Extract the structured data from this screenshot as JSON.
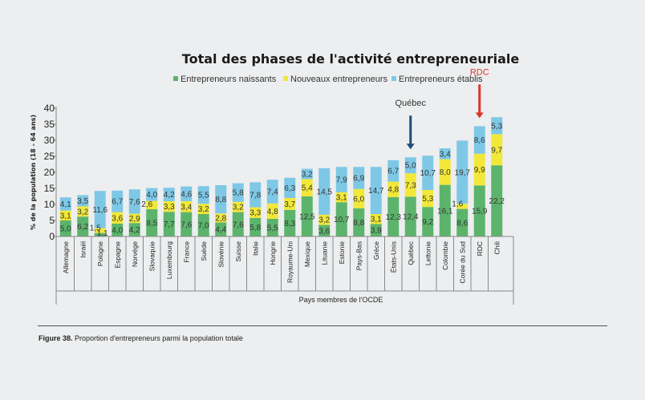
{
  "chart_data": {
    "type": "bar",
    "stacked": true,
    "title": "Total des phases de l'activité entrepreneuriale",
    "ylabel": "% de la population (18 - 64 ans)",
    "xlabel": "Pays membres de l'OCDE",
    "ylim": [
      0,
      40
    ],
    "yticks": [
      0,
      5,
      10,
      15,
      20,
      25,
      30,
      35,
      40
    ],
    "legend_position": "top",
    "categories": [
      "Allemagne",
      "Israël",
      "Pologne",
      "Espagne",
      "Norvège",
      "Slovaquie",
      "Luxembourg",
      "France",
      "Suède",
      "Slovénie",
      "Suisse",
      "Italie",
      "Hongrie",
      "Royaume-Uni",
      "Mexique",
      "Lituanie",
      "Estonie",
      "Pays-Bas",
      "Grèce",
      "États-Unis",
      "Québec",
      "Lettonie",
      "Colombie",
      "Corée du Sud",
      "RDC",
      "Chili"
    ],
    "series": [
      {
        "name": "Entrepreneurs naissants",
        "color": "#5cb46c",
        "values": [
          5.0,
          6.2,
          1.1,
          4.0,
          4.2,
          8.5,
          7.7,
          7.6,
          7.0,
          4.4,
          7.6,
          5.8,
          5.5,
          8.3,
          12.5,
          3.6,
          10.7,
          8.8,
          3.9,
          12.3,
          12.4,
          9.2,
          16.1,
          8.6,
          15.9,
          22.2
        ]
      },
      {
        "name": "Nouveaux entrepreneurs",
        "color": "#f2e83a",
        "values": [
          3.1,
          3.2,
          1.5,
          3.6,
          2.9,
          2.6,
          3.3,
          3.4,
          3.2,
          2.8,
          3.2,
          3.3,
          4.8,
          3.7,
          5.4,
          3.2,
          3.1,
          6.0,
          3.1,
          4.8,
          7.3,
          5.3,
          8.0,
          1.6,
          9.9,
          9.7
        ]
      },
      {
        "name": "Entrepreneurs établis",
        "color": "#7ec8e6",
        "values": [
          4.1,
          3.5,
          11.6,
          6.7,
          7.6,
          4.0,
          4.2,
          4.6,
          5.5,
          8.8,
          5.8,
          7.8,
          7.4,
          6.3,
          3.2,
          14.5,
          7.9,
          6.9,
          14.7,
          6.7,
          5.0,
          10.7,
          3.4,
          19.7,
          8.6,
          5.3
        ]
      }
    ],
    "annotations": [
      {
        "text": "Québec",
        "category": "Québec",
        "arrow_color": "#1f4e79"
      },
      {
        "text": "RDC",
        "category": "RDC",
        "arrow_color": "#d9342b"
      }
    ]
  },
  "caption": {
    "label": "Figure 38.",
    "text": " Proportion d'entrepreneurs parmi la population totale"
  }
}
